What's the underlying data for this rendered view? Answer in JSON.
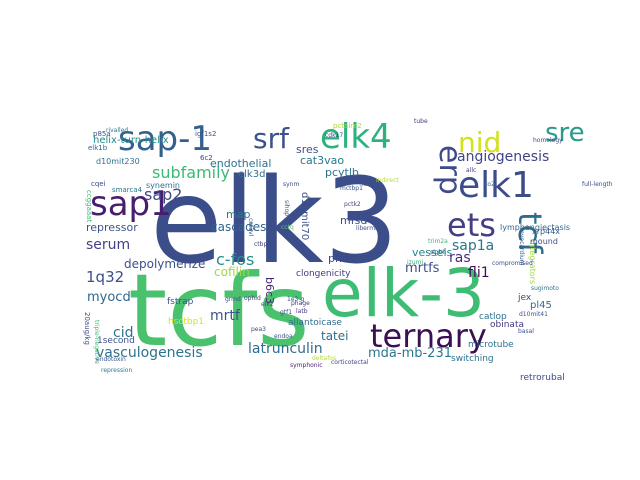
{
  "wordcloud": {
    "words": [
      {
        "text": "elk3",
        "color": "#3b4e8a"
      },
      {
        "text": "tcfs",
        "color": "#49c16d"
      },
      {
        "text": "elk-3",
        "color": "#3ebc73"
      },
      {
        "text": "ternary",
        "color": "#3b0f53"
      },
      {
        "text": "sap-1",
        "color": "#34608d"
      },
      {
        "text": "elk4",
        "color": "#2db27d"
      },
      {
        "text": "srf",
        "color": "#3b528b"
      },
      {
        "text": "nid",
        "color": "#d2e21b"
      },
      {
        "text": "sre",
        "color": "#2a9a8a"
      },
      {
        "text": "erp",
        "color": "#3e4a89"
      },
      {
        "text": "elk1",
        "color": "#3d4d8a"
      },
      {
        "text": "sap1",
        "color": "#481c6e"
      },
      {
        "text": "ets",
        "color": "#433e85"
      },
      {
        "text": "tcf",
        "color": "#2f6c8e"
      },
      {
        "text": "angiogenesis",
        "color": "#404588"
      },
      {
        "text": "subfamily",
        "color": "#3aba76"
      },
      {
        "text": "sap2",
        "color": "#3f4889"
      },
      {
        "text": "sap1a",
        "color": "#2b748e"
      },
      {
        "text": "ras",
        "color": "#4b2a7e"
      },
      {
        "text": "c-fos",
        "color": "#218f8d"
      },
      {
        "text": "serum",
        "color": "#424186"
      },
      {
        "text": "mrtf",
        "color": "#3a538b"
      },
      {
        "text": "fli1",
        "color": "#450b59"
      },
      {
        "text": "mrtfs",
        "color": "#3e4c8a"
      },
      {
        "text": "1q32",
        "color": "#3c508b"
      },
      {
        "text": "cid",
        "color": "#2a768e"
      },
      {
        "text": "myocd",
        "color": "#31678e"
      },
      {
        "text": "vasculogenesis",
        "color": "#2c738e"
      },
      {
        "text": "latrunculin",
        "color": "#2f6b8e"
      },
      {
        "text": "mda-mb-231",
        "color": "#29798e"
      },
      {
        "text": "depolymerize",
        "color": "#3c4f8a"
      },
      {
        "text": "cofilin",
        "color": "#a0da39"
      },
      {
        "text": "repressor",
        "color": "#3a538b"
      },
      {
        "text": "cascades",
        "color": "#31668e"
      },
      {
        "text": "map",
        "color": "#2a788e"
      },
      {
        "text": "b6c3",
        "color": "#482576"
      },
      {
        "text": "tatei",
        "color": "#2e6e8e"
      },
      {
        "text": "phds",
        "color": "#3f4889"
      },
      {
        "text": "vessels",
        "color": "#25858e"
      },
      {
        "text": "mfsd4",
        "color": "#3d4d8a"
      },
      {
        "text": "endothelial",
        "color": "#2b748e"
      },
      {
        "text": "cat3vao",
        "color": "#2a788e"
      },
      {
        "text": "pcytlb",
        "color": "#2c718e"
      },
      {
        "text": "sres",
        "color": "#3b528b"
      },
      {
        "text": "elk3d",
        "color": "#2d708e"
      },
      {
        "text": "helix-turn-helix",
        "color": "#228c8d"
      },
      {
        "text": "d10mit70",
        "color": "#3a538b"
      },
      {
        "text": "clongenicity",
        "color": "#443983"
      },
      {
        "text": "fstrap",
        "color": "#3b518b"
      },
      {
        "text": "allantoicase",
        "color": "#2e6d8e"
      },
      {
        "text": "hsctbp1",
        "color": "#d8e219"
      },
      {
        "text": "1second",
        "color": "#3b528b"
      },
      {
        "text": "switching",
        "color": "#2d718e"
      },
      {
        "text": "microtube",
        "color": "#2c728e"
      },
      {
        "text": "obinata",
        "color": "#453882"
      },
      {
        "text": "retrorubal",
        "color": "#3e4a89"
      },
      {
        "text": "catlop",
        "color": "#2c728e"
      },
      {
        "text": "pl45",
        "color": "#2e6e8e"
      },
      {
        "text": "jex",
        "color": "#3e4a89"
      },
      {
        "text": "lymphangiectasis",
        "color": "#31668e"
      },
      {
        "text": "integrators",
        "color": "#a2da37"
      },
      {
        "text": "xrp44x",
        "color": "#39558c"
      },
      {
        "text": "mound",
        "color": "#3c4f8a"
      },
      {
        "text": "synemin",
        "color": "#2c728e"
      },
      {
        "text": "d10mit230",
        "color": "#2c728e"
      },
      {
        "text": "p85a",
        "color": "#3d4e8a"
      },
      {
        "text": "elk1b",
        "color": "#33638d"
      },
      {
        "text": "cqei",
        "color": "#3e4989"
      },
      {
        "text": "ccggaaat",
        "color": "#3aba76"
      },
      {
        "text": "20aug/kg",
        "color": "#3f4889"
      },
      {
        "text": "triple-negative",
        "color": "#3dbc74"
      },
      {
        "text": "smarca4",
        "color": "#2a768e"
      },
      {
        "text": "igf1s2",
        "color": "#3a548c"
      },
      {
        "text": "6c2",
        "color": "#424086"
      },
      {
        "text": "pctaire2",
        "color": "#a8db34"
      },
      {
        "text": "synm",
        "color": "#3e4a89"
      },
      {
        "text": "cctq",
        "color": "#5ec962"
      },
      {
        "text": "sihop",
        "color": "#39568c"
      },
      {
        "text": "mctbp1",
        "color": "#3a538b"
      },
      {
        "text": "lecs",
        "color": "#3d4d8a"
      },
      {
        "text": "indirect",
        "color": "#b5de2b"
      },
      {
        "text": "pctk2",
        "color": "#3e4a89"
      },
      {
        "text": "libermann",
        "color": "#3b528b"
      },
      {
        "text": "ophid",
        "color": "#443a83"
      },
      {
        "text": "grmd",
        "color": "#3c4f8a"
      },
      {
        "text": "1e3-g",
        "color": "#3d4d8a"
      },
      {
        "text": "phage",
        "color": "#46327e"
      },
      {
        "text": "pea3",
        "color": "#404588"
      },
      {
        "text": "latb",
        "color": "#443983"
      },
      {
        "text": "cat3vl",
        "color": "#39558c"
      },
      {
        "text": "ctbp",
        "color": "#443a83"
      },
      {
        "text": "trim2a",
        "color": "#35b779"
      },
      {
        "text": "izumi",
        "color": "#29af7f"
      },
      {
        "text": "sigbh",
        "color": "#3b528b"
      },
      {
        "text": "tube",
        "color": "#453781"
      },
      {
        "text": "allc",
        "color": "#453882"
      },
      {
        "text": "to2",
        "color": "#2c728e"
      },
      {
        "text": "homology",
        "color": "#3e4a89"
      },
      {
        "text": "rivalled",
        "color": "#2a788e"
      },
      {
        "text": "erg",
        "color": "#3d4d8a"
      },
      {
        "text": "gtf1",
        "color": "#3d4d8a"
      },
      {
        "text": "cdk17",
        "color": "#3e4a89"
      },
      {
        "text": "full-length",
        "color": "#3e4a89"
      },
      {
        "text": "repression",
        "color": "#2a788e"
      },
      {
        "text": "endotoxin",
        "color": "#39568c"
      },
      {
        "text": "corticotectal",
        "color": "#3f4889"
      },
      {
        "text": "deltafos",
        "color": "#b5de2b"
      },
      {
        "text": "sugimoto",
        "color": "#2a788e"
      },
      {
        "text": "compromised",
        "color": "#3d4d8a"
      },
      {
        "text": "myocardium",
        "color": "#3b528b"
      },
      {
        "text": "endoa",
        "color": "#3e4a89"
      },
      {
        "text": "elk2",
        "color": "#3e4a89"
      },
      {
        "text": "symphonic",
        "color": "#482677"
      },
      {
        "text": "basal",
        "color": "#3b528b"
      },
      {
        "text": "d10mit41",
        "color": "#3b528b"
      }
    ]
  }
}
